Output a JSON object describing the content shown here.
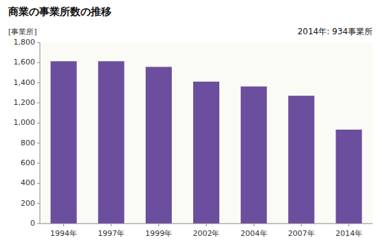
{
  "chart_data": {
    "type": "bar",
    "title": "商業の事業所数の推移",
    "ylabel": "[事業所]",
    "annotation": "2014年: 934事業所",
    "categories": [
      "1994年",
      "1997年",
      "1999年",
      "2002年",
      "2004年",
      "2007年",
      "2014年"
    ],
    "values": [
      1614,
      1614,
      1558,
      1411,
      1363,
      1271,
      934
    ],
    "color": "#6B4F9E",
    "ylim": [
      0,
      1800
    ],
    "yticks": [
      0,
      200,
      400,
      600,
      800,
      {
        "value": 1000,
        "label": "1,000"
      },
      {
        "value": 1200,
        "label": "1,200"
      },
      {
        "value": 1400,
        "label": "1,400"
      },
      {
        "value": 1600,
        "label": "1,600"
      },
      {
        "value": 1800,
        "label": "1,800"
      }
    ],
    "grid": false
  }
}
